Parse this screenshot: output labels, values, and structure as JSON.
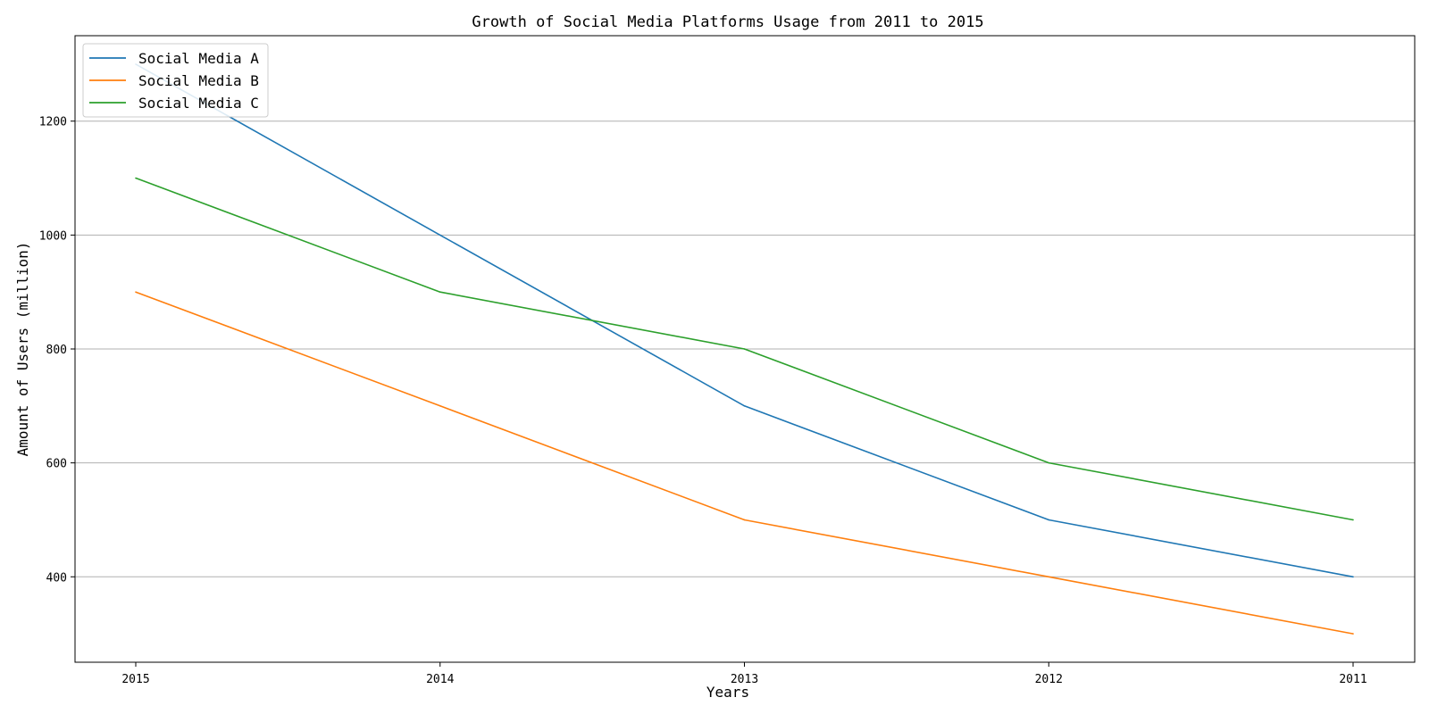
{
  "chart_data": {
    "type": "line",
    "title": "Growth of Social Media Platforms Usage from 2011 to 2015",
    "xlabel": "Years",
    "ylabel": "Amount of Users (million)",
    "categories": [
      "2015",
      "2014",
      "2013",
      "2012",
      "2011"
    ],
    "ylim": [
      250,
      1350
    ],
    "yticks": [
      400,
      600,
      800,
      1000,
      1200
    ],
    "grid": "horizontal",
    "legend_position": "top-left",
    "series": [
      {
        "name": "Social Media A",
        "color": "#1f77b4",
        "values": [
          1300,
          1000,
          700,
          500,
          400
        ]
      },
      {
        "name": "Social Media B",
        "color": "#ff7f0e",
        "values": [
          900,
          700,
          500,
          400,
          300
        ]
      },
      {
        "name": "Social Media C",
        "color": "#2ca02c",
        "values": [
          1100,
          900,
          800,
          600,
          500
        ]
      }
    ]
  }
}
